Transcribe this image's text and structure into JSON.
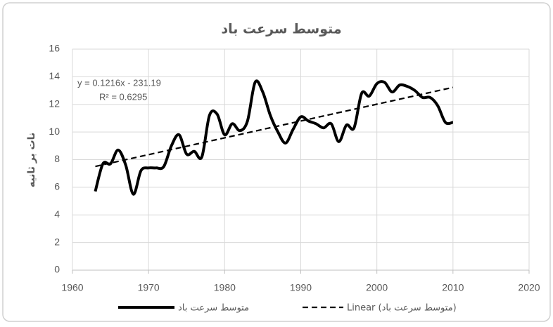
{
  "chart_data": {
    "type": "line",
    "title": "متوسط سرعت باد",
    "y_label": "نات بر ثانیه",
    "annotations": [
      "y = 0.1216x - 231.19",
      "R² = 0.6295"
    ],
    "xlim": [
      1960,
      2020
    ],
    "xticks": [
      1960,
      1970,
      1980,
      1990,
      2000,
      2010,
      2020
    ],
    "ylim": [
      0,
      16
    ],
    "yticks": [
      0,
      2,
      4,
      6,
      8,
      10,
      12,
      14,
      16
    ],
    "grid": true,
    "legend": "bottom",
    "series": [
      {
        "name": "متوسط سرعت باد",
        "color": "#000000",
        "style": "solid",
        "x": [
          1963,
          1964,
          1965,
          1966,
          1967,
          1968,
          1969,
          1970,
          1971,
          1972,
          1973,
          1974,
          1975,
          1976,
          1977,
          1978,
          1979,
          1980,
          1981,
          1982,
          1983,
          1984,
          1985,
          1986,
          1987,
          1988,
          1989,
          1990,
          1991,
          1992,
          1993,
          1994,
          1995,
          1996,
          1997,
          1998,
          1999,
          2000,
          2001,
          2002,
          2003,
          2004,
          2005,
          2006,
          2007,
          2008,
          2009,
          2010
        ],
        "values": [
          5.7,
          7.7,
          7.7,
          8.7,
          7.6,
          5.5,
          7.2,
          7.4,
          7.4,
          7.5,
          9.0,
          9.8,
          8.4,
          8.6,
          8.2,
          11.2,
          11.3,
          9.8,
          10.6,
          10.1,
          10.8,
          13.6,
          12.9,
          11.2,
          10.0,
          9.2,
          10.2,
          11.1,
          10.8,
          10.6,
          10.3,
          10.6,
          9.3,
          10.5,
          10.3,
          12.8,
          12.6,
          13.5,
          13.6,
          12.9,
          13.4,
          13.3,
          13.0,
          12.5,
          12.5,
          11.9,
          10.7,
          10.7
        ]
      },
      {
        "name": "Linear (متوسط سرعت باد)",
        "color": "#000000",
        "style": "dashed",
        "x": [
          1963,
          2010
        ],
        "values": [
          7.51,
          13.23
        ]
      }
    ]
  }
}
